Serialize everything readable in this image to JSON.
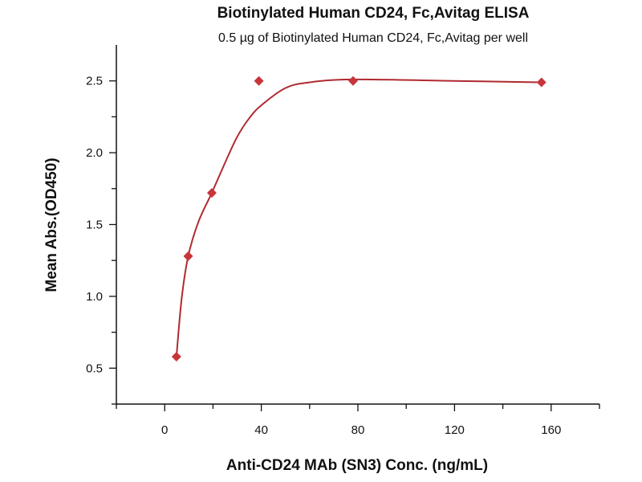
{
  "chart_data": {
    "type": "scatter",
    "title": "Biotinylated Human CD24, Fc,Avitag ELISA",
    "subtitle": "0.5 µg of Biotinylated Human CD24, Fc,Avitag per well",
    "xlabel": "Anti-CD24 MAb (SN3) Conc. (ng/mL)",
    "ylabel": "Mean Abs.(OD450)",
    "xlim": [
      -20,
      180
    ],
    "ylim": [
      0.25,
      2.75
    ],
    "xticks": [
      0,
      40,
      80,
      120,
      160
    ],
    "xtick_labels": [
      "0",
      "40",
      "80",
      "120",
      "160"
    ],
    "yticks": [
      0.5,
      1.0,
      1.5,
      2.0,
      2.5
    ],
    "ytick_labels": [
      "0.5",
      "1.0",
      "1.5",
      "2.0",
      "2.5"
    ],
    "grid": false,
    "marker": "diamond",
    "colors": {
      "marker": "#c8353a",
      "line": "#b02a30"
    },
    "points": [
      {
        "x": 4.88,
        "y": 0.58
      },
      {
        "x": 9.75,
        "y": 1.28
      },
      {
        "x": 19.5,
        "y": 1.72
      },
      {
        "x": 39,
        "y": 2.5
      },
      {
        "x": 78,
        "y": 2.5
      },
      {
        "x": 156,
        "y": 2.49
      }
    ],
    "fit_curve": [
      [
        4.88,
        0.58
      ],
      [
        7,
        0.98
      ],
      [
        9.75,
        1.28
      ],
      [
        14,
        1.52
      ],
      [
        19.5,
        1.72
      ],
      [
        25,
        1.93
      ],
      [
        30,
        2.11
      ],
      [
        35,
        2.24
      ],
      [
        40,
        2.33
      ],
      [
        50,
        2.45
      ],
      [
        60,
        2.49
      ],
      [
        78,
        2.51
      ],
      [
        120,
        2.5
      ],
      [
        156,
        2.49
      ]
    ]
  }
}
